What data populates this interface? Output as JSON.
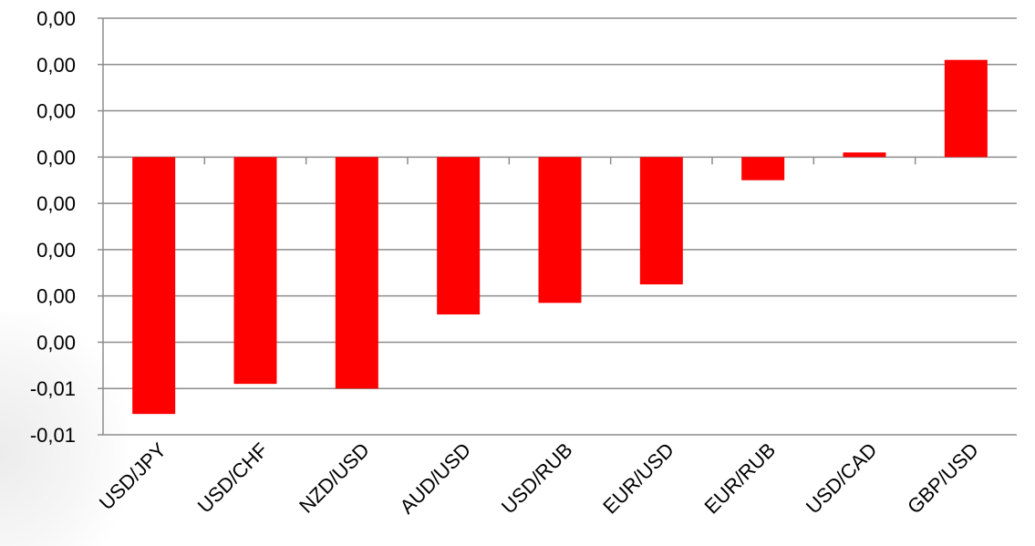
{
  "chart_data": {
    "type": "bar",
    "title": "",
    "xlabel": "",
    "ylabel": "",
    "categories": [
      "USD/JPY",
      "USD/CHF",
      "NZD/USD",
      "AUD/USD",
      "USD/RUB",
      "EUR/USD",
      "EUR/RUB",
      "USD/CAD",
      "GBP/USD"
    ],
    "series": [
      {
        "values": [
          -0.0111,
          -0.0098,
          -0.01,
          -0.0068,
          -0.0063,
          -0.0055,
          -0.001,
          0.0002,
          0.0042
        ]
      }
    ],
    "ylim": [
      -0.012,
      0.006
    ],
    "ytick_values": [
      0.006,
      0.004,
      0.002,
      0.0,
      -0.002,
      -0.004,
      -0.006,
      -0.008,
      -0.01,
      -0.012
    ],
    "ytick_labels": [
      "0,00",
      "0,00",
      "0,00",
      "0,00",
      "0,00",
      "0,00",
      "0,00",
      "0,00",
      "-0,01",
      "-0,01"
    ],
    "grid": true,
    "bar_color": "#ff0000"
  }
}
